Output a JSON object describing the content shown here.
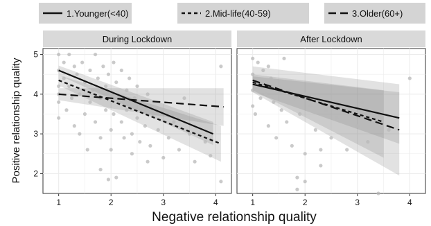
{
  "chart_data": {
    "type": "scatter",
    "xlabel": "Negative relationship quality",
    "ylabel": "Positive relationship quality",
    "xlim": [
      0.7,
      4.3
    ],
    "ylim": [
      1.5,
      5.15
    ],
    "x_ticks": [
      "1",
      "2",
      "3",
      "4"
    ],
    "y_ticks": [
      "2",
      "3",
      "4",
      "5"
    ],
    "grid": true,
    "legend_position": "top",
    "series": [
      {
        "name": "1.Younger(<40)",
        "linestyle": "solid"
      },
      {
        "name": "2.Mid-life(40-59)",
        "linestyle": "short-dash"
      },
      {
        "name": "3.Older(60+)",
        "linestyle": "long-dash"
      }
    ],
    "panels": [
      {
        "title": "During Lockdown",
        "fits": [
          {
            "series": "1.Younger(<40)",
            "x": [
              1,
              3.95
            ],
            "y": [
              4.6,
              3.0
            ],
            "ci_start": [
              4.48,
              4.72
            ],
            "ci_end": [
              2.72,
              3.3
            ]
          },
          {
            "series": "2.Mid-life(40-59)",
            "x": [
              1,
              4.1
            ],
            "y": [
              4.35,
              2.75
            ],
            "ci_start": [
              4.22,
              4.48
            ],
            "ci_end": [
              2.3,
              3.2
            ]
          },
          {
            "series": "3.Older(60+)",
            "x": [
              1,
              4.15
            ],
            "y": [
              4.0,
              3.68
            ],
            "ci_start": [
              3.85,
              4.15
            ],
            "ci_end": [
              3.2,
              4.15
            ]
          }
        ],
        "points": [
          [
            1.0,
            5.0
          ],
          [
            1.0,
            4.6
          ],
          [
            1.0,
            4.0
          ],
          [
            1.0,
            3.8
          ],
          [
            1.0,
            3.4
          ],
          [
            1.0,
            4.2
          ],
          [
            1.1,
            4.8
          ],
          [
            1.1,
            4.4
          ],
          [
            1.15,
            3.6
          ],
          [
            1.2,
            5.0
          ],
          [
            1.2,
            4.2
          ],
          [
            1.25,
            3.9
          ],
          [
            1.3,
            4.7
          ],
          [
            1.3,
            3.2
          ],
          [
            1.35,
            4.5
          ],
          [
            1.4,
            4.0
          ],
          [
            1.4,
            3.0
          ],
          [
            1.45,
            4.8
          ],
          [
            1.5,
            4.3
          ],
          [
            1.5,
            3.5
          ],
          [
            1.55,
            2.6
          ],
          [
            1.6,
            4.6
          ],
          [
            1.6,
            3.8
          ],
          [
            1.65,
            4.1
          ],
          [
            1.7,
            5.0
          ],
          [
            1.7,
            3.3
          ],
          [
            1.75,
            4.4
          ],
          [
            1.8,
            3.9
          ],
          [
            1.8,
            2.9
          ],
          [
            1.85,
            4.7
          ],
          [
            1.9,
            4.2
          ],
          [
            1.9,
            3.6
          ],
          [
            1.95,
            4.5
          ],
          [
            2.0,
            4.0
          ],
          [
            2.0,
            3.1
          ],
          [
            2.0,
            2.6
          ],
          [
            2.05,
            4.8
          ],
          [
            2.05,
            3.5
          ],
          [
            2.1,
            4.3
          ],
          [
            2.1,
            1.9
          ],
          [
            2.15,
            3.8
          ],
          [
            2.2,
            4.6
          ],
          [
            2.2,
            3.3
          ],
          [
            2.25,
            2.9
          ],
          [
            2.3,
            4.1
          ],
          [
            2.3,
            3.6
          ],
          [
            2.35,
            4.4
          ],
          [
            2.4,
            3.0
          ],
          [
            2.4,
            2.5
          ],
          [
            2.45,
            3.9
          ],
          [
            2.5,
            4.2
          ],
          [
            2.5,
            3.4
          ],
          [
            2.55,
            2.8
          ],
          [
            2.6,
            3.7
          ],
          [
            2.65,
            3.2
          ],
          [
            2.7,
            4.0
          ],
          [
            2.75,
            2.7
          ],
          [
            2.8,
            3.5
          ],
          [
            2.9,
            3.1
          ],
          [
            3.0,
            2.4
          ],
          [
            3.0,
            3.6
          ],
          [
            3.1,
            2.9
          ],
          [
            3.2,
            3.3
          ],
          [
            3.3,
            2.6
          ],
          [
            3.5,
            3.0
          ],
          [
            3.6,
            2.3
          ],
          [
            3.8,
            2.8
          ],
          [
            3.9,
            2.45
          ],
          [
            4.1,
            1.8
          ],
          [
            4.1,
            4.7
          ],
          [
            1.8,
            2.1
          ],
          [
            1.95,
            1.85
          ],
          [
            2.7,
            2.3
          ],
          [
            3.4,
            3.9
          ]
        ]
      },
      {
        "title": "After Lockdown",
        "fits": [
          {
            "series": "1.Younger(<40)",
            "x": [
              1,
              3.8
            ],
            "y": [
              4.25,
              3.4
            ],
            "ci_start": [
              4.05,
              4.45
            ],
            "ci_end": [
              2.75,
              4.05
            ]
          },
          {
            "series": "2.Mid-life(40-59)",
            "x": [
              1,
              3.5
            ],
            "y": [
              4.3,
              3.3
            ],
            "ci_start": [
              4.1,
              4.5
            ],
            "ci_end": [
              2.4,
              4.1
            ]
          },
          {
            "series": "3.Older(60+)",
            "x": [
              1,
              3.8
            ],
            "y": [
              4.35,
              3.1
            ],
            "ci_start": [
              4.05,
              4.7
            ],
            "ci_end": [
              1.95,
              4.25
            ]
          }
        ],
        "points": [
          [
            1.0,
            4.9
          ],
          [
            1.0,
            4.5
          ],
          [
            1.0,
            4.1
          ],
          [
            1.0,
            3.7
          ],
          [
            1.05,
            3.5
          ],
          [
            1.1,
            4.8
          ],
          [
            1.1,
            4.3
          ],
          [
            1.15,
            3.9
          ],
          [
            1.2,
            4.6
          ],
          [
            1.25,
            4.0
          ],
          [
            1.3,
            4.7
          ],
          [
            1.3,
            3.2
          ],
          [
            1.35,
            4.4
          ],
          [
            1.4,
            3.8
          ],
          [
            1.45,
            2.9
          ],
          [
            1.5,
            4.2
          ],
          [
            1.55,
            3.6
          ],
          [
            1.6,
            4.9
          ],
          [
            1.65,
            3.3
          ],
          [
            1.7,
            4.1
          ],
          [
            1.75,
            2.7
          ],
          [
            1.8,
            3.9
          ],
          [
            1.85,
            1.6
          ],
          [
            1.9,
            3.5
          ],
          [
            2.0,
            4.0
          ],
          [
            2.0,
            2.5
          ],
          [
            2.0,
            1.8
          ],
          [
            2.1,
            3.7
          ],
          [
            2.2,
            3.1
          ],
          [
            2.3,
            2.2
          ],
          [
            2.4,
            3.6
          ],
          [
            2.5,
            2.9
          ],
          [
            2.6,
            3.4
          ],
          [
            2.8,
            2.6
          ],
          [
            3.0,
            3.2
          ],
          [
            3.1,
            3.8
          ],
          [
            3.2,
            2.8
          ],
          [
            3.4,
            1.5
          ],
          [
            3.6,
            3.1
          ],
          [
            4.0,
            4.4
          ],
          [
            1.85,
            1.9
          ],
          [
            2.3,
            2.6
          ]
        ]
      }
    ]
  }
}
